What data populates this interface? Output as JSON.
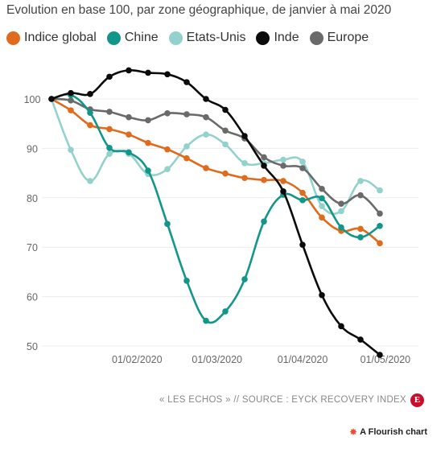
{
  "subtitle": "Evolution en base 100, par zone géographique, de janvier à mai 2020",
  "source": "« LES ECHOS » // SOURCE : EYCK RECOVERY INDEX",
  "logo_letter": "E",
  "credit": "A Flourish chart",
  "colors": {
    "Indice global": "#e06b1c",
    "Chine": "#12968a",
    "Etats-Unis": "#93d1cc",
    "Inde": "#0b0b0b",
    "Europe": "#6a6a6a",
    "grid": "#ececec",
    "tick": "#666666"
  },
  "chart_data": {
    "type": "line",
    "title": "",
    "xlabel": "",
    "ylabel": "",
    "x": [
      "2020-01-01",
      "2020-01-08",
      "2020-01-15",
      "2020-01-22",
      "2020-01-29",
      "2020-02-05",
      "2020-02-12",
      "2020-02-19",
      "2020-02-26",
      "2020-03-04",
      "2020-03-11",
      "2020-03-18",
      "2020-03-25",
      "2020-04-01",
      "2020-04-08",
      "2020-04-15",
      "2020-04-22",
      "2020-04-29",
      "2020-05-06"
    ],
    "x_ticks": [
      "01/02/2020",
      "01/03/2020",
      "01/04/2020",
      "01/05/2020"
    ],
    "x_tick_values": [
      "2020-02-01",
      "2020-03-01",
      "2020-04-01",
      "2020-05-01"
    ],
    "y_ticks": [
      50,
      60,
      70,
      80,
      90,
      100
    ],
    "ylim": [
      48,
      106
    ],
    "grid": true,
    "legend": "top",
    "series": [
      {
        "name": "Indice global",
        "values": [
          100,
          97.7,
          94.7,
          93.9,
          92.8,
          91.1,
          89.8,
          88.0,
          86.0,
          84.9,
          84.0,
          83.6,
          83.4,
          81.0,
          76.0,
          73.3,
          73.7,
          70.8,
          null
        ]
      },
      {
        "name": "Chine",
        "values": [
          100,
          100.8,
          97.2,
          90.1,
          89.2,
          85.5,
          74.7,
          63.2,
          55.1,
          57.0,
          63.5,
          75.2,
          80.6,
          79.5,
          79.9,
          74.0,
          72.0,
          74.3,
          null
        ]
      },
      {
        "name": "Etats-Unis",
        "values": [
          100,
          89.7,
          83.4,
          88.9,
          88.9,
          84.8,
          85.8,
          90.4,
          92.8,
          90.8,
          87.0,
          87.0,
          87.7,
          87.3,
          78.3,
          77.3,
          83.4,
          81.5,
          null
        ]
      },
      {
        "name": "Inde",
        "values": [
          100,
          101.2,
          101.0,
          104.5,
          105.8,
          105.3,
          105.0,
          103.4,
          100.0,
          97.8,
          92.5,
          86.5,
          81.3,
          70.5,
          60.3,
          54.0,
          51.3,
          48.2,
          null
        ]
      },
      {
        "name": "Europe",
        "values": [
          100,
          99.7,
          97.9,
          97.4,
          96.3,
          95.7,
          97.1,
          96.9,
          96.3,
          93.6,
          92.0,
          88.2,
          86.5,
          86.0,
          81.8,
          78.8,
          80.5,
          76.8,
          null
        ]
      }
    ]
  }
}
